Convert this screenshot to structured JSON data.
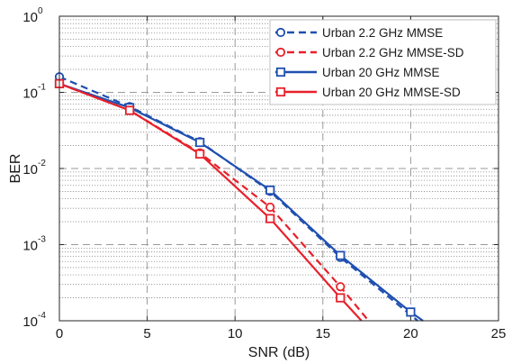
{
  "chart_data": {
    "type": "line",
    "title": "",
    "xlabel": "SNR (dB)",
    "ylabel": "BER",
    "x_ticks": [
      "0",
      "5",
      "10",
      "15",
      "20",
      "25"
    ],
    "y_ticks": [
      {
        "base": "10",
        "exp": "0"
      },
      {
        "base": "10",
        "exp": "-1"
      },
      {
        "base": "10",
        "exp": "-2"
      },
      {
        "base": "10",
        "exp": "-3"
      },
      {
        "base": "10",
        "exp": "-4"
      }
    ],
    "xlim": [
      0,
      25
    ],
    "ylim": [
      0.0001,
      1
    ],
    "yscale": "log",
    "grid": true,
    "legend_position": "top-right",
    "series": [
      {
        "name": "Urban 2.2 GHz MMSE",
        "color": "#1f4fb0",
        "line_style": "dashed",
        "marker": "circle",
        "x": [
          0,
          4,
          8,
          12,
          16,
          20.4
        ],
        "y": [
          0.16,
          0.065,
          0.0225,
          0.005,
          0.00068,
          0.0001
        ]
      },
      {
        "name": "Urban 2.2 GHz MMSE-SD",
        "color": "#e8202a",
        "line_style": "dashed",
        "marker": "circle",
        "x": [
          0,
          4,
          8,
          12,
          16,
          17.6
        ],
        "y": [
          0.13,
          0.058,
          0.016,
          0.0031,
          0.00028,
          0.0001
        ]
      },
      {
        "name": "Urban 20 GHz MMSE",
        "color": "#1f4fb0",
        "line_style": "solid",
        "marker": "square",
        "x": [
          0,
          4,
          8,
          12,
          16,
          20,
          20.7
        ],
        "y": [
          0.13,
          0.063,
          0.022,
          0.0052,
          0.00072,
          0.00013,
          0.0001
        ]
      },
      {
        "name": "Urban 20 GHz MMSE-SD",
        "color": "#e8202a",
        "line_style": "solid",
        "marker": "square",
        "x": [
          0,
          4,
          8,
          12,
          16,
          17.2
        ],
        "y": [
          0.13,
          0.058,
          0.0155,
          0.0022,
          0.0002,
          0.0001
        ]
      }
    ]
  }
}
